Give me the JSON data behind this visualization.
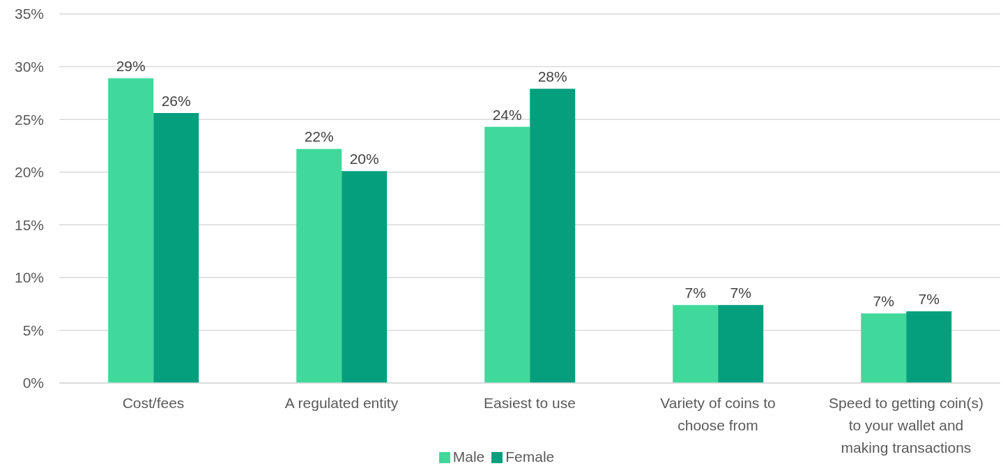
{
  "chart_data": {
    "type": "bar",
    "categories": [
      "Cost/fees",
      "A regulated entity",
      "Easiest to use",
      "Variety of coins to choose from",
      "Speed to getting coin(s) to your wallet and making transactions"
    ],
    "series": [
      {
        "name": "Male",
        "color": "#41d99b",
        "values": [
          28.9,
          22.2,
          24.3,
          7.4,
          6.6
        ],
        "value_labels": [
          "29%",
          "22%",
          "24%",
          "7%",
          "7%"
        ]
      },
      {
        "name": "Female",
        "color": "#069f7e",
        "values": [
          25.6,
          20.1,
          27.9,
          7.4,
          6.8
        ],
        "value_labels": [
          "26%",
          "20%",
          "28%",
          "7%",
          "7%"
        ]
      }
    ],
    "ylim": [
      0,
      35
    ],
    "yticks": [
      {
        "value": 0,
        "label": "0%"
      },
      {
        "value": 5,
        "label": "5%"
      },
      {
        "value": 10,
        "label": "10%"
      },
      {
        "value": 15,
        "label": "15%"
      },
      {
        "value": 20,
        "label": "20%"
      },
      {
        "value": 25,
        "label": "25%"
      },
      {
        "value": 30,
        "label": "30%"
      },
      {
        "value": 35,
        "label": "35%"
      }
    ],
    "grid": "y",
    "legend": "bottom"
  }
}
